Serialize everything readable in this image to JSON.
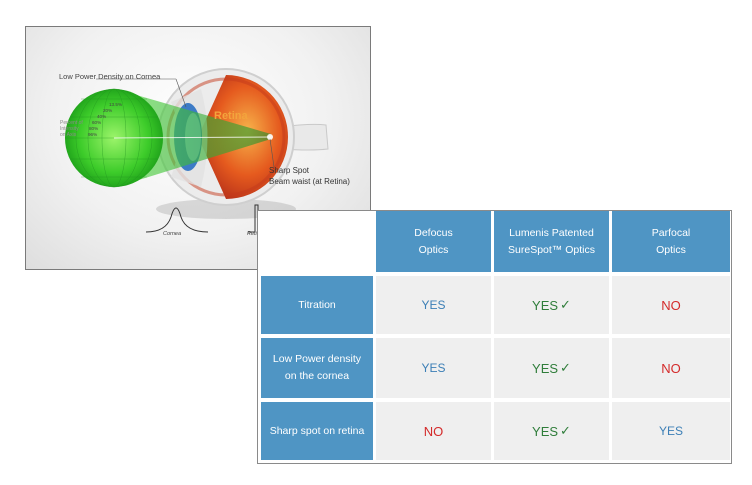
{
  "diagram": {
    "cornea_label": "Low Power Density on Cornea",
    "sharp_spot_lines": [
      "Sharp Spot",
      "Beam waist (at Retina)"
    ],
    "intensity_label_lines": [
      "Percent of",
      "Intensity",
      "on Axis"
    ],
    "percent_values": [
      "13.5%",
      "20%",
      "40%",
      "60%",
      "80%",
      "96%"
    ],
    "retina_word": "Retina",
    "cornea_curve_label": "Cornea",
    "retina_curve_label": "Retina"
  },
  "table": {
    "columns": [
      "Defocus Optics",
      "Lumenis Patented SureSpot™ Optics",
      "Parfocal Optics"
    ],
    "rows": [
      {
        "label": "Titration",
        "values": [
          "YES",
          "YES",
          "NO"
        ]
      },
      {
        "label": "Low Power density on the cornea",
        "values": [
          "YES",
          "YES",
          "NO"
        ]
      },
      {
        "label": "Sharp spot on retina",
        "values": [
          "NO",
          "YES",
          "YES"
        ]
      }
    ],
    "check_mark": "✓",
    "colors": {
      "header": "#4f95c4",
      "cell": "#efefef",
      "yes_blue": "#3c7fb6",
      "yes_green": "#2f7d3a",
      "no_red": "#d42a2a"
    }
  }
}
